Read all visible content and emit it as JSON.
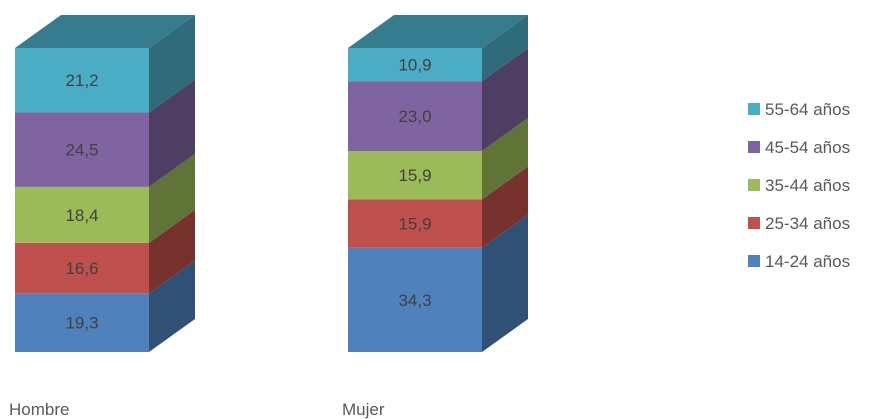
{
  "chart_data": {
    "type": "bar",
    "stacked": true,
    "categories": [
      "Hombre",
      "Mujer"
    ],
    "series": [
      {
        "name": "14-24 años",
        "values": [
          19.3,
          34.3
        ],
        "labels": [
          "19,3",
          "34,3"
        ],
        "color": "#4f81bd"
      },
      {
        "name": "25-34 años",
        "values": [
          16.6,
          15.9
        ],
        "labels": [
          "16,6",
          "15,9"
        ],
        "color": "#c0504d"
      },
      {
        "name": "35-44 años",
        "values": [
          18.4,
          15.9
        ],
        "labels": [
          "18,4",
          "15,9"
        ],
        "color": "#9bbb59"
      },
      {
        "name": "45-54 años",
        "values": [
          24.5,
          23.0
        ],
        "labels": [
          "24,5",
          "23,0"
        ],
        "color": "#8064a2"
      },
      {
        "name": "55-64 años",
        "values": [
          21.2,
          10.9
        ],
        "labels": [
          "21,2",
          "10,9"
        ],
        "color": "#4bacc6"
      }
    ],
    "ylim": [
      0,
      100
    ],
    "legend": "right",
    "grid": false,
    "style": "3d"
  }
}
